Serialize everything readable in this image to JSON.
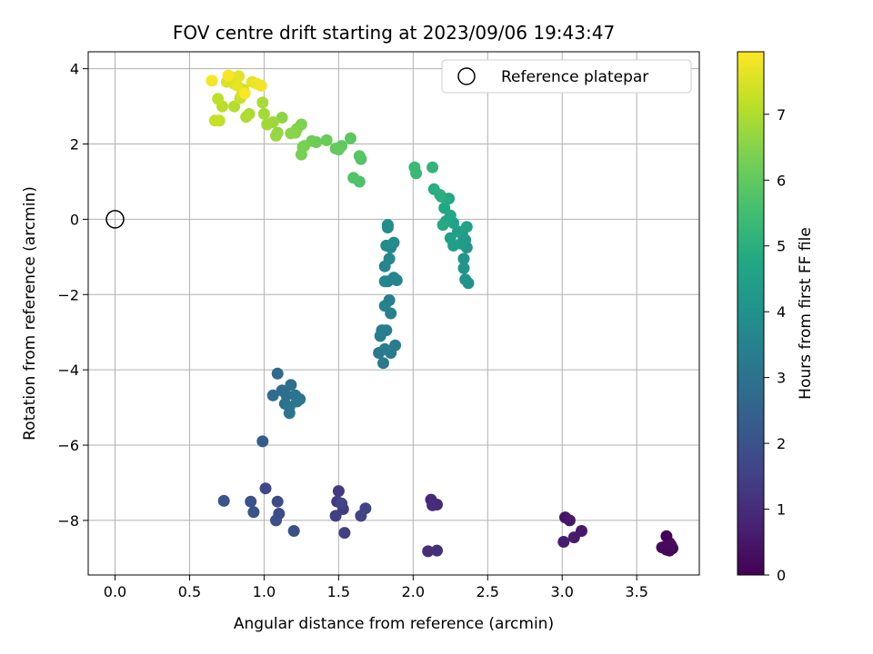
{
  "chart_data": {
    "type": "scatter",
    "title": "FOV centre drift starting at 2023/09/06 19:43:47",
    "xlabel": "Angular distance from reference (arcmin)",
    "ylabel": "Rotation from reference (arcmin)",
    "colorbar_label": "Hours from first FF file",
    "xlim": [
      -0.18,
      3.92
    ],
    "ylim": [
      -9.45,
      4.45
    ],
    "clim": [
      0,
      7.95
    ],
    "colormap": "viridis",
    "x_ticks": [
      0.0,
      0.5,
      1.0,
      1.5,
      2.0,
      2.5,
      3.0,
      3.5
    ],
    "x_tick_labels": [
      "0.0",
      "0.5",
      "1.0",
      "1.5",
      "2.0",
      "2.5",
      "3.0",
      "3.5"
    ],
    "y_ticks": [
      -8,
      -6,
      -4,
      -2,
      0,
      2,
      4
    ],
    "y_tick_labels": [
      "−8",
      "−6",
      "−4",
      "−2",
      "0",
      "2",
      "4"
    ],
    "colorbar_ticks": [
      0,
      1,
      2,
      3,
      4,
      5,
      6,
      7
    ],
    "colorbar_tick_labels": [
      "0",
      "1",
      "2",
      "3",
      "4",
      "5",
      "6",
      "7"
    ],
    "grid": true,
    "legend": {
      "position": "top-right",
      "entries": [
        "Reference platepar"
      ]
    },
    "reference": {
      "name": "Reference platepar",
      "x": 0.0,
      "y": 0.0,
      "marker": "open-circle"
    },
    "points": [
      {
        "x": 3.7,
        "y": -8.42,
        "t": 0.05
      },
      {
        "x": 3.72,
        "y": -8.6,
        "t": 0.08
      },
      {
        "x": 3.74,
        "y": -8.74,
        "t": 0.1
      },
      {
        "x": 3.7,
        "y": -8.78,
        "t": 0.12
      },
      {
        "x": 3.67,
        "y": -8.72,
        "t": 0.15
      },
      {
        "x": 3.72,
        "y": -8.8,
        "t": 0.18
      },
      {
        "x": 3.69,
        "y": -8.7,
        "t": 0.2
      },
      {
        "x": 3.73,
        "y": -8.66,
        "t": 0.22
      },
      {
        "x": 3.02,
        "y": -7.92,
        "t": 0.45
      },
      {
        "x": 3.05,
        "y": -8.0,
        "t": 0.5
      },
      {
        "x": 3.13,
        "y": -8.28,
        "t": 0.55
      },
      {
        "x": 3.08,
        "y": -8.45,
        "t": 0.6
      },
      {
        "x": 3.01,
        "y": -8.57,
        "t": 0.65
      },
      {
        "x": 2.12,
        "y": -7.45,
        "t": 0.9
      },
      {
        "x": 2.16,
        "y": -7.58,
        "t": 0.95
      },
      {
        "x": 2.13,
        "y": -7.6,
        "t": 1.0
      },
      {
        "x": 2.1,
        "y": -8.82,
        "t": 1.05
      },
      {
        "x": 2.16,
        "y": -8.8,
        "t": 1.1
      },
      {
        "x": 1.5,
        "y": -7.22,
        "t": 1.3
      },
      {
        "x": 1.49,
        "y": -7.5,
        "t": 1.35
      },
      {
        "x": 1.53,
        "y": -7.7,
        "t": 1.4
      },
      {
        "x": 1.48,
        "y": -7.88,
        "t": 1.45
      },
      {
        "x": 1.54,
        "y": -8.33,
        "t": 1.5
      },
      {
        "x": 1.68,
        "y": -7.68,
        "t": 1.55
      },
      {
        "x": 1.65,
        "y": -7.88,
        "t": 1.6
      },
      {
        "x": 1.52,
        "y": -7.55,
        "t": 1.62
      },
      {
        "x": 1.01,
        "y": -7.15,
        "t": 1.75
      },
      {
        "x": 1.09,
        "y": -7.5,
        "t": 1.8
      },
      {
        "x": 1.1,
        "y": -7.82,
        "t": 1.85
      },
      {
        "x": 1.08,
        "y": -8.0,
        "t": 1.9
      },
      {
        "x": 1.2,
        "y": -8.28,
        "t": 1.95
      },
      {
        "x": 0.91,
        "y": -7.5,
        "t": 2.0
      },
      {
        "x": 0.93,
        "y": -7.78,
        "t": 2.05
      },
      {
        "x": 0.73,
        "y": -7.48,
        "t": 2.1
      },
      {
        "x": 0.99,
        "y": -5.9,
        "t": 2.3
      },
      {
        "x": 1.09,
        "y": -4.1,
        "t": 2.75
      },
      {
        "x": 1.06,
        "y": -4.68,
        "t": 2.8
      },
      {
        "x": 1.12,
        "y": -4.55,
        "t": 2.85
      },
      {
        "x": 1.15,
        "y": -4.68,
        "t": 2.9
      },
      {
        "x": 1.18,
        "y": -4.4,
        "t": 2.95
      },
      {
        "x": 1.14,
        "y": -4.9,
        "t": 3.0
      },
      {
        "x": 1.21,
        "y": -4.68,
        "t": 3.02
      },
      {
        "x": 1.24,
        "y": -4.78,
        "t": 3.05
      },
      {
        "x": 1.17,
        "y": -5.15,
        "t": 3.07
      },
      {
        "x": 1.17,
        "y": -4.98,
        "t": 3.09
      },
      {
        "x": 1.22,
        "y": -4.84,
        "t": 3.1
      },
      {
        "x": 1.77,
        "y": -3.55,
        "t": 3.2
      },
      {
        "x": 1.8,
        "y": -3.82,
        "t": 3.22
      },
      {
        "x": 1.85,
        "y": -3.55,
        "t": 3.25
      },
      {
        "x": 1.88,
        "y": -3.35,
        "t": 3.28
      },
      {
        "x": 1.81,
        "y": -3.45,
        "t": 3.3
      },
      {
        "x": 1.79,
        "y": -2.95,
        "t": 3.32
      },
      {
        "x": 1.82,
        "y": -2.95,
        "t": 3.35
      },
      {
        "x": 1.78,
        "y": -3.1,
        "t": 3.38
      },
      {
        "x": 1.81,
        "y": -2.3,
        "t": 3.42
      },
      {
        "x": 1.84,
        "y": -2.15,
        "t": 3.45
      },
      {
        "x": 1.85,
        "y": -2.5,
        "t": 3.48
      },
      {
        "x": 1.83,
        "y": -1.65,
        "t": 3.52
      },
      {
        "x": 1.87,
        "y": -1.55,
        "t": 3.55
      },
      {
        "x": 1.89,
        "y": -1.62,
        "t": 3.58
      },
      {
        "x": 1.81,
        "y": -1.25,
        "t": 3.62
      },
      {
        "x": 1.81,
        "y": -1.65,
        "t": 3.65
      },
      {
        "x": 1.84,
        "y": -1.05,
        "t": 3.68
      },
      {
        "x": 1.85,
        "y": -0.75,
        "t": 3.72
      },
      {
        "x": 1.87,
        "y": -0.62,
        "t": 3.75
      },
      {
        "x": 1.82,
        "y": -0.7,
        "t": 3.78
      },
      {
        "x": 1.83,
        "y": -0.22,
        "t": 3.82
      },
      {
        "x": 1.83,
        "y": -0.15,
        "t": 3.85
      },
      {
        "x": 2.37,
        "y": -1.7,
        "t": 4.0
      },
      {
        "x": 2.35,
        "y": -1.6,
        "t": 4.05
      },
      {
        "x": 2.34,
        "y": -1.3,
        "t": 4.1
      },
      {
        "x": 2.34,
        "y": -1.05,
        "t": 4.15
      },
      {
        "x": 2.36,
        "y": -0.75,
        "t": 4.2
      },
      {
        "x": 2.35,
        "y": -0.55,
        "t": 4.25
      },
      {
        "x": 2.33,
        "y": -0.4,
        "t": 4.3
      },
      {
        "x": 2.32,
        "y": -0.65,
        "t": 4.35
      },
      {
        "x": 2.27,
        "y": -0.7,
        "t": 4.4
      },
      {
        "x": 2.25,
        "y": -0.5,
        "t": 4.45
      },
      {
        "x": 2.3,
        "y": -0.32,
        "t": 4.5
      },
      {
        "x": 2.27,
        "y": -0.1,
        "t": 4.55
      },
      {
        "x": 2.36,
        "y": -0.2,
        "t": 4.6
      },
      {
        "x": 2.22,
        "y": -0.05,
        "t": 4.65
      },
      {
        "x": 2.25,
        "y": 0.1,
        "t": 4.7
      },
      {
        "x": 2.21,
        "y": 0.3,
        "t": 4.75
      },
      {
        "x": 2.24,
        "y": 0.55,
        "t": 4.8
      },
      {
        "x": 2.2,
        "y": -0.15,
        "t": 4.85
      },
      {
        "x": 2.19,
        "y": 0.6,
        "t": 4.9
      },
      {
        "x": 2.14,
        "y": 0.8,
        "t": 4.95
      },
      {
        "x": 2.18,
        "y": 0.65,
        "t": 5.0
      },
      {
        "x": 2.13,
        "y": 1.38,
        "t": 5.2
      },
      {
        "x": 2.02,
        "y": 1.22,
        "t": 5.3
      },
      {
        "x": 2.01,
        "y": 1.38,
        "t": 5.35
      },
      {
        "x": 1.64,
        "y": 1.0,
        "t": 5.7
      },
      {
        "x": 1.6,
        "y": 1.1,
        "t": 5.75
      },
      {
        "x": 1.65,
        "y": 1.6,
        "t": 5.8
      },
      {
        "x": 1.64,
        "y": 1.68,
        "t": 5.85
      },
      {
        "x": 1.58,
        "y": 2.15,
        "t": 5.9
      },
      {
        "x": 1.52,
        "y": 1.95,
        "t": 5.95
      },
      {
        "x": 1.48,
        "y": 1.88,
        "t": 6.0
      },
      {
        "x": 1.5,
        "y": 1.85,
        "t": 6.05
      },
      {
        "x": 1.42,
        "y": 2.1,
        "t": 6.1
      },
      {
        "x": 1.35,
        "y": 2.05,
        "t": 6.15
      },
      {
        "x": 1.32,
        "y": 2.08,
        "t": 6.2
      },
      {
        "x": 1.26,
        "y": 1.92,
        "t": 6.25
      },
      {
        "x": 1.25,
        "y": 1.72,
        "t": 6.3
      },
      {
        "x": 1.27,
        "y": 1.95,
        "t": 6.35
      },
      {
        "x": 1.25,
        "y": 2.52,
        "t": 6.4
      },
      {
        "x": 1.22,
        "y": 2.4,
        "t": 6.45
      },
      {
        "x": 1.21,
        "y": 2.3,
        "t": 6.5
      },
      {
        "x": 1.18,
        "y": 2.28,
        "t": 6.55
      },
      {
        "x": 1.12,
        "y": 2.7,
        "t": 6.6
      },
      {
        "x": 1.09,
        "y": 2.3,
        "t": 6.65
      },
      {
        "x": 1.08,
        "y": 2.22,
        "t": 6.7
      },
      {
        "x": 1.06,
        "y": 2.58,
        "t": 6.75
      },
      {
        "x": 1.02,
        "y": 2.52,
        "t": 6.8
      },
      {
        "x": 1.0,
        "y": 2.8,
        "t": 6.85
      },
      {
        "x": 0.99,
        "y": 3.1,
        "t": 6.9
      },
      {
        "x": 0.9,
        "y": 2.8,
        "t": 6.95
      },
      {
        "x": 0.88,
        "y": 2.72,
        "t": 7.0
      },
      {
        "x": 0.8,
        "y": 3.0,
        "t": 7.05
      },
      {
        "x": 0.72,
        "y": 3.0,
        "t": 7.1
      },
      {
        "x": 0.69,
        "y": 3.2,
        "t": 7.15
      },
      {
        "x": 0.7,
        "y": 2.62,
        "t": 7.2
      },
      {
        "x": 0.67,
        "y": 2.62,
        "t": 7.25
      },
      {
        "x": 0.84,
        "y": 3.22,
        "t": 7.3
      },
      {
        "x": 0.85,
        "y": 3.3,
        "t": 7.35
      },
      {
        "x": 0.86,
        "y": 3.45,
        "t": 7.4
      },
      {
        "x": 0.8,
        "y": 3.6,
        "t": 7.45
      },
      {
        "x": 0.75,
        "y": 3.65,
        "t": 7.5
      },
      {
        "x": 0.78,
        "y": 3.78,
        "t": 7.55
      },
      {
        "x": 0.83,
        "y": 3.8,
        "t": 7.6
      },
      {
        "x": 0.82,
        "y": 3.55,
        "t": 7.65
      },
      {
        "x": 0.92,
        "y": 3.65,
        "t": 7.7
      },
      {
        "x": 0.95,
        "y": 3.6,
        "t": 7.75
      },
      {
        "x": 0.98,
        "y": 3.55,
        "t": 7.8
      },
      {
        "x": 0.65,
        "y": 3.68,
        "t": 7.85
      },
      {
        "x": 0.76,
        "y": 3.82,
        "t": 7.88
      },
      {
        "x": 0.87,
        "y": 3.35,
        "t": 7.9
      }
    ]
  }
}
